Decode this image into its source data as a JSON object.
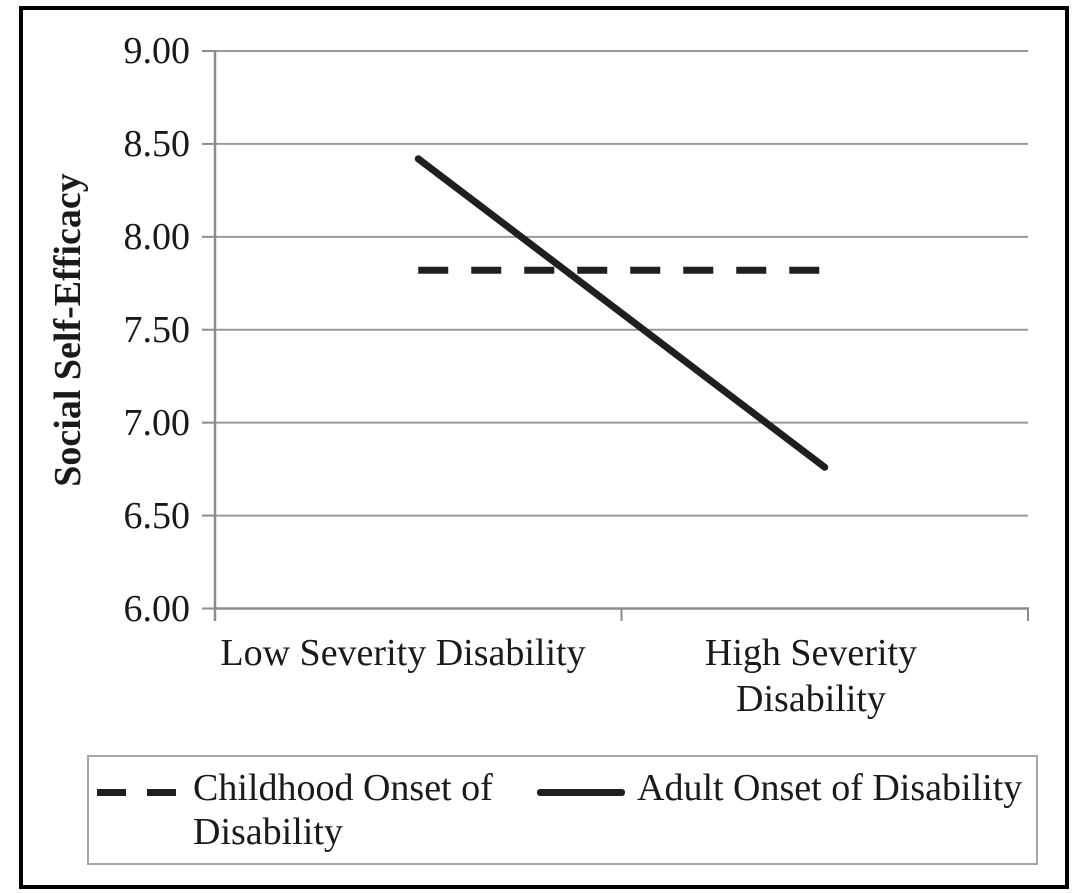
{
  "chart_data": {
    "type": "line",
    "title": "",
    "ylabel": "Social Self-Efficacy",
    "xlabel": "",
    "ylim": [
      6.0,
      9.0
    ],
    "yticks": [
      "9.00",
      "8.50",
      "8.00",
      "7.50",
      "7.00",
      "6.50",
      "6.00"
    ],
    "grid": true,
    "legend_position": "bottom",
    "categories": [
      "Low Severity Disability",
      "High Severity Disability"
    ],
    "series": [
      {
        "name": "Childhood Onset of Disability",
        "style": "dashed",
        "values": [
          7.82,
          7.82
        ]
      },
      {
        "name": "Adult Onset of Disability",
        "style": "solid",
        "values": [
          8.42,
          6.76
        ]
      }
    ],
    "colors": {
      "line": "#1f1f1f",
      "gridline": "#999999",
      "axis": "#8c8c8c",
      "text": "#1a1a1a",
      "legend_border": "#a6a6a6",
      "figure_border": "#000000",
      "background": "#ffffff"
    }
  }
}
